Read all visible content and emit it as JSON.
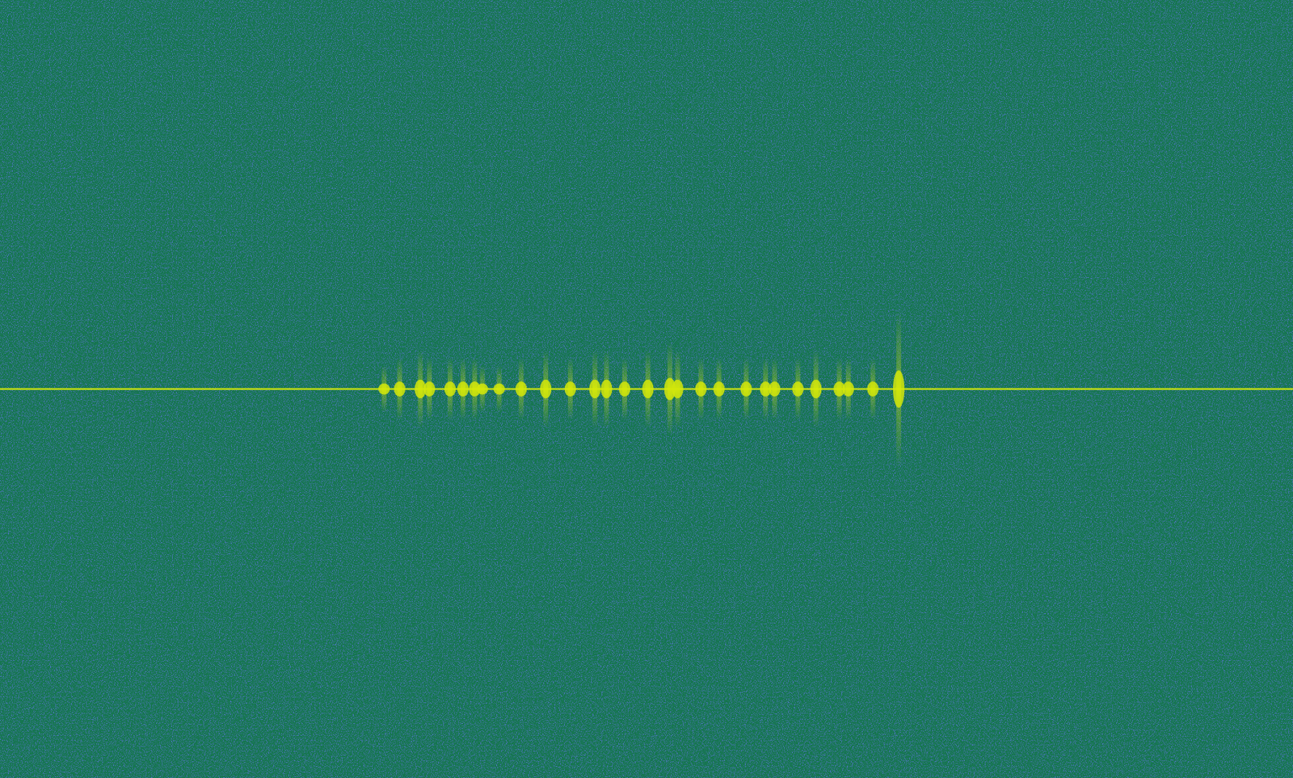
{
  "chart_data": {
    "type": "spectrogram",
    "tick_labels": false,
    "grid": false,
    "xlim": [
      0,
      100
    ],
    "ylim": [
      -50,
      50
    ],
    "carrier": 0,
    "color": "#d4e80a",
    "x": [
      29.7,
      30.9,
      32.5,
      33.2,
      34.8,
      35.8,
      36.7,
      37.3,
      38.6,
      40.3,
      42.2,
      44.1,
      46.0,
      46.9,
      48.3,
      50.1,
      51.8,
      52.4,
      54.2,
      55.6,
      57.7,
      59.2,
      59.9,
      61.7,
      63.1,
      64.9,
      65.6,
      67.5,
      69.5
    ],
    "values": [
      3,
      4,
      5,
      4,
      4,
      4,
      4,
      3,
      3,
      4,
      5,
      4,
      5,
      5,
      4,
      5,
      6,
      5,
      4,
      4,
      4,
      4,
      4,
      4,
      5,
      4,
      4,
      4,
      10
    ]
  }
}
